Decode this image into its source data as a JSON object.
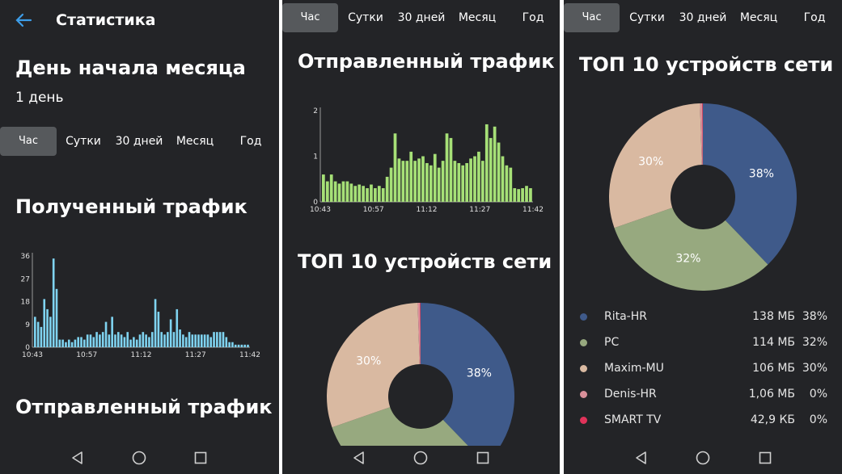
{
  "app": {
    "title": "Статистика"
  },
  "month_start": {
    "title": "День начала месяца",
    "value": "1 день"
  },
  "tabs": [
    {
      "label": "Час",
      "active": true
    },
    {
      "label": "Сутки",
      "active": false
    },
    {
      "label": "30 дней",
      "active": false
    },
    {
      "label": "Месяц",
      "active": false
    },
    {
      "label": "Год",
      "active": false
    }
  ],
  "received": {
    "title": "Полученный трафик"
  },
  "sent": {
    "title": "Отправленный трафик"
  },
  "devices": {
    "title": "ТОП 10 устройств сети",
    "items": [
      {
        "name": "Rita-HR",
        "size": "138 МБ",
        "pct": "38%",
        "color": "#3f5a8a"
      },
      {
        "name": "PC",
        "size": "114 МБ",
        "pct": "32%",
        "color": "#97a97f"
      },
      {
        "name": "Maxim-MU",
        "size": "106 МБ",
        "pct": "30%",
        "color": "#d9b9a1"
      },
      {
        "name": "Denis-HR",
        "size": "1,06 МБ",
        "pct": "0%",
        "color": "#d9909a"
      },
      {
        "name": "SMART TV",
        "size": "42,9 КБ",
        "pct": "0%",
        "color": "#e0335a"
      }
    ]
  },
  "chart_data": [
    {
      "type": "bar",
      "title": "Полученный трафик",
      "x_tick_labels": [
        "10:43",
        "10:57",
        "11:12",
        "11:27",
        "11:42"
      ],
      "y_tick_labels": [
        "0",
        "9",
        "18",
        "27",
        "36"
      ],
      "ylim": [
        0,
        36
      ],
      "color": "#7fd3f0",
      "values": [
        12,
        10,
        8,
        19,
        15,
        12,
        35,
        23,
        3,
        3,
        2,
        3,
        2,
        3,
        4,
        4,
        3,
        5,
        5,
        4,
        6,
        5,
        6,
        10,
        5,
        12,
        5,
        6,
        5,
        4,
        6,
        3,
        4,
        3,
        5,
        6,
        5,
        4,
        6,
        19,
        14,
        6,
        5,
        6,
        11,
        6,
        15,
        7,
        5,
        4,
        6,
        5,
        5,
        5,
        5,
        5,
        5,
        4,
        6,
        6,
        6,
        6,
        4,
        2,
        2,
        1,
        1,
        1,
        1,
        1
      ]
    },
    {
      "type": "bar",
      "title": "Отправленный трафик",
      "x_tick_labels": [
        "10:43",
        "10:57",
        "11:12",
        "11:27",
        "11:42"
      ],
      "y_tick_labels": [
        "0",
        "1",
        "2"
      ],
      "ylim": [
        0,
        2
      ],
      "color": "#a6e077",
      "values": [
        0.6,
        0.45,
        0.6,
        0.45,
        0.4,
        0.45,
        0.45,
        0.4,
        0.35,
        0.38,
        0.35,
        0.3,
        0.38,
        0.3,
        0.35,
        0.3,
        0.55,
        0.75,
        1.5,
        0.95,
        0.9,
        0.9,
        1.1,
        0.9,
        0.95,
        1.0,
        0.85,
        0.8,
        1.05,
        0.75,
        0.9,
        1.5,
        1.4,
        0.9,
        0.85,
        0.8,
        0.85,
        0.95,
        1.0,
        1.1,
        0.9,
        1.7,
        1.4,
        1.65,
        1.3,
        1.0,
        0.8,
        0.75,
        0.3,
        0.28,
        0.3,
        0.35,
        0.3
      ]
    },
    {
      "type": "pie",
      "title": "ТОП 10 устройств сети",
      "labels": [
        "Rita-HR",
        "PC",
        "Maxim-MU",
        "Denis-HR",
        "SMART TV"
      ],
      "values": [
        38,
        32,
        30,
        0.4,
        0.1
      ],
      "slice_labels": [
        "38%",
        "32%",
        "30%",
        "",
        ""
      ],
      "colors": [
        "#3f5a8a",
        "#97a97f",
        "#d9b9a1",
        "#d9909a",
        "#e0335a"
      ]
    }
  ]
}
